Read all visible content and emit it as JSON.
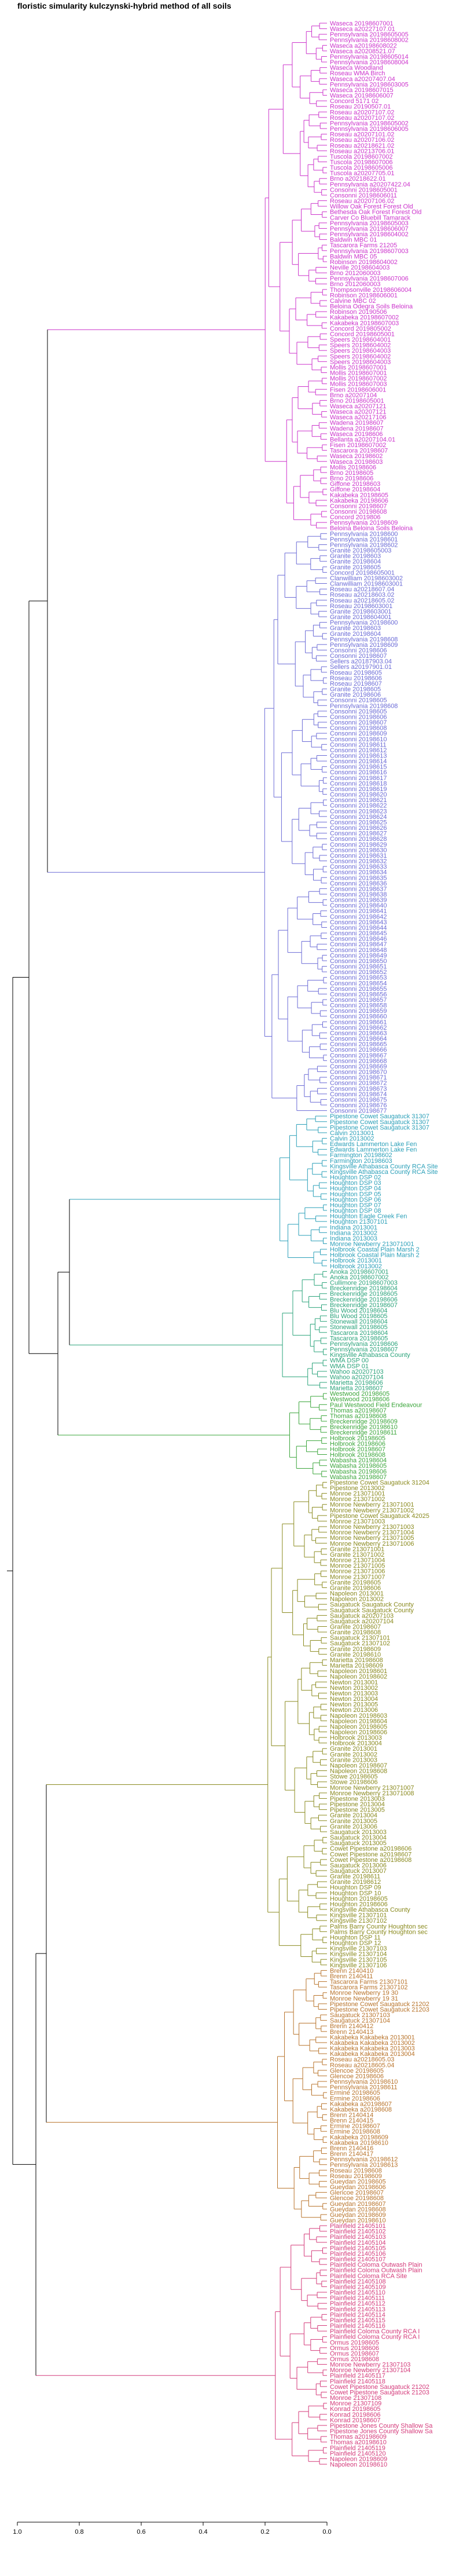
{
  "chart_data": {
    "type": "dendrogram",
    "title": "floristic simularity kulczynski-hybrid  method of all soils",
    "x_axis": {
      "ticks": [
        "1.0",
        "0.8",
        "0.6",
        "0.4",
        "0.2",
        "0.0"
      ],
      "range": [
        1.0,
        0.0
      ]
    },
    "colors": [
      "#cc33cc",
      "#6a6ad6",
      "#2a9fb8",
      "#2aa37a",
      "#3aa53a",
      "#8a8a1e",
      "#b8732a",
      "#d43a7a"
    ],
    "clusters": [
      {
        "color_index": 0,
        "labels": [
          "Waseca 20198607001",
          "Waseca a20227107.01",
          "Pennsylvania 20198605005",
          "Pennsylvania 20198608002",
          "Waseca a20198608022",
          "Waseca a20208521.07",
          "Pennsylvania 20198605014",
          "Pennsylvania 20198608004",
          "Waseca Woodland",
          "Roseau WMA Birch",
          "Waseca a20207407.04",
          "Pennsylvania 20198603005",
          "Waseca 20198607015",
          "Waseca 20198606007",
          "Concord 5171 02",
          "Roseau 20190507.01",
          "Roseau a20207107.02",
          "Roseau a20207107.02",
          "Pennsylvania 20198605002",
          "Pennsylvania 20198606005",
          "Roseau a20207101.02",
          "Roseau a20207106.02",
          "Roseau a20218621.02",
          "Roseau a20213706.01",
          "Tuscola 20198607002",
          "Tuscola 20198607006",
          "Tuscola 20198605006",
          "Tuscola a20207705.01",
          "Brno a20218622.01",
          "Pennsylvania a20207422.04",
          "Consonni 20198605001",
          "Consonni 20198606011",
          "Roseau a20207106.02",
          "Willow Oak Forest Forest Old",
          "Bethesda Oak Forest Forest Old",
          "Carver Co Bluebill Tamarack",
          "Pennsylvania 20198605003",
          "Pennsylvania 20198606007",
          "Pennsylvania 20198604002",
          "Baldwin MBC 01",
          "Tascarora Farms 21205",
          "Pennsylvania 20198607003",
          "Baldwin MBC 05",
          "Robinson 20198604002",
          "Neville 20198604003",
          "Brno 2012060003",
          "Pennsylvania 20198607006",
          "Brno 2012060003",
          "Thompsonville 20198606004",
          "Robinson 20198606001",
          "Calvine MBC 02",
          "Beloina Odegra Soils Beloina",
          "Robinson 20190506",
          "Kakabeka 20198607002",
          "Kakabeka 20198607003",
          "Concord 2019805002",
          "Concord 20198605001",
          "Speers 20198604001",
          "Speers 20198604002",
          "Speers 20198604003",
          "Speers 20198604002",
          "Speers 20198604003",
          "Mollis 20198607001",
          "Mollis 20198607001",
          "Mollis 20198607002",
          "Mollis 20198607003",
          "Fisen 20198606001",
          "Brno a20207104",
          "Brno 20198605001",
          "Waseca a20207121",
          "Waseca a20207121",
          "Waseca a20217106",
          "Wadena 20198607",
          "Wadena 20198607",
          "Waseca 20198606",
          "Bellanta a20207104.01",
          "Fisen 20198607002",
          "Tascarora 20198607",
          "Waseca 20198602",
          "Waseca 20198603",
          "Mollis 20198606",
          "Brno 20198605",
          "Brno 20198606",
          "Giffone 20198603",
          "Giffone 20198604",
          "Kakabeka 20198605",
          "Kakabeka 20198606",
          "Consonni 20198607",
          "Consonni 20198608",
          "Concord 2019806",
          "Pennsylvania 20198609",
          "Beloina Beloina Soils Beloina"
        ]
      },
      {
        "color_index": 1,
        "labels": [
          "Pennsylvania 20198600",
          "Pennsylvania 20198601",
          "Pennsylvania 20198602",
          "Granite 20198605003",
          "Granite 20198603",
          "Granite 20198604",
          "Granite 20198605",
          "Concord 20198605001",
          "Clanwilliam 20198603002",
          "Clanwilliam 20198603001",
          "Roseau a20218607.04",
          "Roseau a20218603.02",
          "Roseau a20218605.02",
          "Roseau 20198603001",
          "Granite 20198603001",
          "Granite 20198604001",
          "Pennsylvania 20198600",
          "Granite 20198603",
          "Granite 20198604",
          "Pennsylvania 20198608",
          "Pennsylvania 20198609",
          "Consonni 20198606",
          "Consonni 20198607",
          "Sellers a20187903.04",
          "Sellers a20197901.01",
          "Roseau 20198605",
          "Roseau 20198606",
          "Roseau 20198607",
          "Granite 20198605",
          "Granite 20198606",
          "Consonni 20198605",
          "Pennsylvania 20198608",
          "Consonni 20198605",
          "Consonni 20198606",
          "Consonni 20198607",
          "Consonni 20198608",
          "Consonni 20198609",
          "Consonni 20198610",
          "Consonni 20198611",
          "Consonni 20198612",
          "Consonni 20198613",
          "Consonni 20198614",
          "Consonni 20198615",
          "Consonni 20198616",
          "Consonni 20198617",
          "Consonni 20198618",
          "Consonni 20198619",
          "Consonni 20198620",
          "Consonni 20198621",
          "Consonni 20198622",
          "Consonni 20198623",
          "Consonni 20198624",
          "Consonni 20198625",
          "Consonni 20198626",
          "Consonni 20198627",
          "Consonni 20198628",
          "Consonni 20198629",
          "Consonni 20198630",
          "Consonni 20198631",
          "Consonni 20198632",
          "Consonni 20198633",
          "Consonni 20198634",
          "Consonni 20198635",
          "Consonni 20198636",
          "Consonni 20198637",
          "Consonni 20198638",
          "Consonni 20198639",
          "Consonni 20198640",
          "Consonni 20198641",
          "Consonni 20198642",
          "Consonni 20198643",
          "Consonni 20198644",
          "Consonni 20198645",
          "Consonni 20198646",
          "Consonni 20198647",
          "Consonni 20198648",
          "Consonni 20198649",
          "Consonni 20198650",
          "Consonni 20198651",
          "Consonni 20198652",
          "Consonni 20198653",
          "Consonni 20198654",
          "Consonni 20198655",
          "Consonni 20198656",
          "Consonni 20198657",
          "Consonni 20198658",
          "Consonni 20198659",
          "Consonni 20198660",
          "Consonni 20198661",
          "Consonni 20198662",
          "Consonni 20198663",
          "Consonni 20198664",
          "Consonni 20198665",
          "Consonni 20198666",
          "Consonni 20198667",
          "Consonni 20198668",
          "Consonni 20198669",
          "Consonni 20198670",
          "Consonni 20198671",
          "Consonni 20198672",
          "Consonni 20198673",
          "Consonni 20198674",
          "Consonni 20198675",
          "Consonni 20198676",
          "Consonni 20198677"
        ]
      },
      {
        "color_index": 2,
        "labels": [
          "Pipestone Cowet Saugatuck 31307",
          "Pipestone Cowet Saugatuck 31307",
          "Pipestone Cowet Saugatuck 31307",
          "Calvin 2013001",
          "Calvin 2013002",
          "Edwards Lammerton Lake Fen",
          "Edwards Lammerton Lake Fen",
          "Farmington 20198602",
          "Farmington 20198603",
          "Kingsville Athabasca County RCA Site",
          "Kingsville Athabasca County RCA Site",
          "Houghton DSP 02",
          "Houghton DSP 03",
          "Houghton DSP 04",
          "Houghton DSP 05",
          "Houghton DSP 06",
          "Houghton DSP 07",
          "Houghton DSP 08",
          "Houghton Eagle Creek Fen",
          "Houghton 21307101",
          "Indiana 2013001",
          "Indiana 2013002",
          "Indiana 2013003",
          "Monroe Newberry 213071001",
          "Holbrook Coastal Plain Marsh 2",
          "Holbrook Coastal Plain Marsh 2",
          "Holbrook 2013001",
          "Holbrook 2013002"
        ]
      },
      {
        "color_index": 3,
        "labels": [
          "Anoka 20198607001",
          "Anoka 20198607002",
          "Cullimore 20198607003",
          "Breckenridge 20198604",
          "Breckenridge 20198605",
          "Breckenridge 20198606",
          "Breckenridge 20198607",
          "Blu Wood 20198604",
          "Blu Wood 20198605",
          "Stonewall 20198604",
          "Stonewall 20198605",
          "Tascarora 20198604",
          "Tascarora 20198605",
          "Pennsylvania 20198606",
          "Pennsylvania 20198607",
          "Kingsville Athabasca County",
          "WMA DSP 00",
          "WMA DSP 01",
          "Wahoo a20207103",
          "Wahoo a20207104",
          "Marietta 20198606",
          "Marietta 20198607"
        ]
      },
      {
        "color_index": 4,
        "labels": [
          "Westwood 20198605",
          "Westwood 20198606",
          "Paul Westwood Field Endeavour",
          "Thomas a20198607",
          "Thomas a20198608",
          "Breckenridge 20198609",
          "Breckenridge 20198610",
          "Breckenridge 20198611",
          "Holbrook 20198605",
          "Holbrook 20198606",
          "Holbrook 20198607",
          "Holbrook 20198608",
          "Wabasha 20198604",
          "Wabasha 20198605",
          "Wabasha 20198606",
          "Wabasha 20198607"
        ]
      },
      {
        "color_index": 5,
        "labels": [
          "Pipestone Cowet Saugatuck 31204",
          "Pipestone 2013002",
          "Monroe 213071001",
          "Monroe 213071002",
          "Monroe Newberry 213071001",
          "Monroe Newberry 213071002",
          "Pipestone Cowet Saugatuck 42025",
          "Monroe 213071003",
          "Monroe Newberry 213071003",
          "Monroe Newberry 213071004",
          "Monroe Newberry 213071005",
          "Monroe Newberry 213071006",
          "Granite 213071001",
          "Granite 213071002",
          "Monroe 213071004",
          "Monroe 213071005",
          "Monroe 213071006",
          "Monroe 213071007",
          "Granite 20198605",
          "Granite 20198606",
          "Napoleon 2013001",
          "Napoleon 2013002",
          "Saugatuck Saugatuck County",
          "Saugatuck Saugatuck County",
          "Saugatuck a20207103",
          "Saugatuck a20207104",
          "Granite 20198607",
          "Granite 20198608",
          "Saugatuck 21307101",
          "Saugatuck 21307102",
          "Granite 20198609",
          "Granite 20198610",
          "Marietta 20198608",
          "Marietta 20198609",
          "Napoleon 20198601",
          "Napoleon 20198602",
          "Newton 2013001",
          "Newton 2013002",
          "Newton 2013003",
          "Newton 2013004",
          "Newton 2013005",
          "Newton 2013006",
          "Napoleon 20198603",
          "Napoleon 20198604",
          "Napoleon 20198605",
          "Napoleon 20198606",
          "Holbrook 2013003",
          "Holbrook 2013004",
          "Granite 2013001",
          "Granite 2013002",
          "Granite 2013003",
          "Napoleon 20198607",
          "Napoleon 20198608",
          "Stowe 20198605",
          "Stowe 20198606",
          "Monroe Newberry 213071007",
          "Monroe Newberry 213071008",
          "Pipestone 2013003",
          "Pipestone 2013004",
          "Pipestone 2013005",
          "Granite 2013004",
          "Granite 2013005",
          "Granite 2013006",
          "Saugatuck 2013003",
          "Saugatuck 2013004",
          "Saugatuck 2013005",
          "Cowet Pipestone a20198606",
          "Cowet Pipestone a20198607",
          "Cowet Pipestone a20198608",
          "Saugatuck 2013006",
          "Saugatuck 2013007",
          "Granite 20198611",
          "Granite 20198612",
          "Houghton DSP 09",
          "Houghton DSP 10",
          "Houghton 20198605",
          "Houghton 20198606",
          "Kingsville Athabasca County",
          "Kingsville 21307101",
          "Kingsville 21307102",
          "Palms Barry County Houghton sec",
          "Palms Barry County Houghton sec",
          "Houghton DSP 11",
          "Houghton DSP 12",
          "Kingsville 21307103",
          "Kingsville 21307104",
          "Kingsville 21307105",
          "Kingsville 21307106"
        ]
      },
      {
        "color_index": 6,
        "labels": [
          "Brenn 2140410",
          "Brenn 2140411",
          "Tascarora Farms 21307101",
          "Tascarora Farms 21307102",
          "Monroe Newberry 19 30",
          "Monroe Newberry 19 31",
          "Pipestone Cowet Saugatuck 21202",
          "Pipestone Cowet Saugatuck 21203",
          "Saugatuck 21307103",
          "Saugatuck 21307104",
          "Brenn 2140412",
          "Brenn 2140413",
          "Kakabeka Kakabeka 2013001",
          "Kakabeka Kakabeka 2013002",
          "Kakabeka Kakabeka 2013003",
          "Kakabeka Kakabeka 2013004",
          "Roseau a20218605.03",
          "Roseau a20218605.04",
          "Glencoe 20198605",
          "Glencoe 20198606",
          "Pennsylvania 20198610",
          "Pennsylvania 20198611",
          "Ermine 20198605",
          "Ermine 20198606",
          "Kakabeka a20198607",
          "Kakabeka a20198608",
          "Brenn 2140414",
          "Brenn 2140415",
          "Ermine 20198607",
          "Ermine 20198608",
          "Kakabeka 20198609",
          "Kakabeka 20198610",
          "Brenn 2140416",
          "Brenn 2140417",
          "Pennsylvania 20198612",
          "Pennsylvania 20198613",
          "Roseau 20198608",
          "Roseau 20198609",
          "Gueydan 20198605",
          "Gueydan 20198606",
          "Glencoe 20198607",
          "Glencoe 20198608",
          "Gueydan 20198607",
          "Gueydan 20198608",
          "Gueydan 20198609",
          "Gueydan 20198610"
        ]
      },
      {
        "color_index": 7,
        "labels": [
          "Plainfield 21405101",
          "Plainfield 21405102",
          "Plainfield 21405103",
          "Plainfield 21405104",
          "Plainfield 21405105",
          "Plainfield 21405106",
          "Plainfield 21405107",
          "Plainfield Coloma Outwash Plain",
          "Plainfield Coloma Outwash Plain",
          "Plainfield Coloma RCA Site",
          "Plainfield 21405108",
          "Plainfield 21405109",
          "Plainfield 21405110",
          "Plainfield 21405111",
          "Plainfield 21405112",
          "Plainfield 21405113",
          "Plainfield 21405114",
          "Plainfield 21405115",
          "Plainfield 21405116",
          "Plainfield Coloma County RCA I",
          "Plainfield Coloma County RCA I",
          "Ormus 20198605",
          "Ormus 20198606",
          "Ormus 20198607",
          "Ormus 20198608",
          "Monroe Newberry 21307103",
          "Monroe Newberry 21307104",
          "Plainfield 21405117",
          "Plainfield 21405118",
          "Cowet Pipestone Saugatuck 21202",
          "Cowet Pipestone Saugatuck 21203",
          "Monroe 21307108",
          "Monroe 21307109",
          "Konrad 20198605",
          "Konrad 20198606",
          "Konrad 20198607",
          "Pipestone Jones County Shallow Sa",
          "Pipestone Jones County Shallow Sa",
          "Thomas a20198609",
          "Thomas a20198610",
          "Plainfield 21405119",
          "Plainfield 21405120",
          "Napoleon 20198609",
          "Napoleon 20198610"
        ]
      }
    ]
  }
}
